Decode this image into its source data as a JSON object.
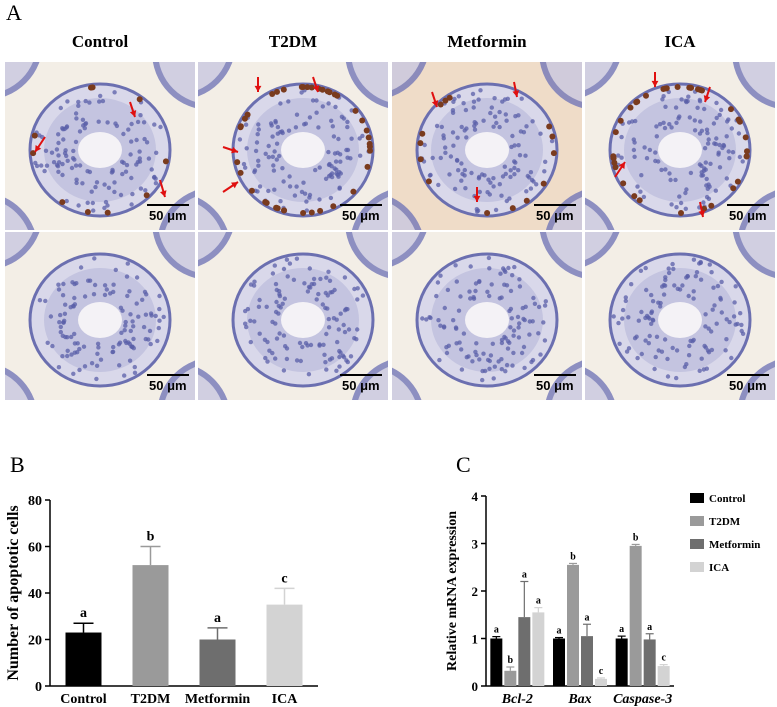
{
  "panel_a": {
    "letter": "A",
    "columns": [
      "Control",
      "T2DM",
      "Metformin",
      "ICA"
    ],
    "scale_label": "50 μm"
  },
  "panel_b": {
    "letter": "B"
  },
  "panel_c": {
    "letter": "C"
  },
  "colors": {
    "control": "#000000",
    "t2dm": "#9a9a9a",
    "metformin": "#6e6e6e",
    "ica": "#d3d3d3",
    "arrow": "#e01010",
    "tissue_bg": "#f3eee6",
    "nucleus_blue": "#5a5fa8",
    "nucleus_brown": "#7a3b1e"
  },
  "chart_data": [
    {
      "type": "bar",
      "categories": [
        "Control",
        "T2DM",
        "Metformin",
        "ICA"
      ],
      "values": [
        23,
        52,
        20,
        35
      ],
      "errors": [
        4,
        8,
        5,
        7
      ],
      "letters": [
        "a",
        "b",
        "a",
        "c"
      ],
      "ylabel": "Number of apoptotic cells",
      "xlabel": "",
      "ylim": [
        0,
        80
      ],
      "yticks": [
        0,
        20,
        40,
        60,
        80
      ]
    },
    {
      "type": "bar",
      "categories": [
        "Bcl-2",
        "Bax",
        "Caspase-3"
      ],
      "series": [
        {
          "name": "Control",
          "values": [
            1.0,
            1.0,
            1.0
          ],
          "errors": [
            0.04,
            0.02,
            0.05
          ],
          "letters": [
            "a",
            "a",
            "a"
          ]
        },
        {
          "name": "T2DM",
          "values": [
            0.32,
            2.55,
            2.95
          ],
          "errors": [
            0.08,
            0.03,
            0.03
          ],
          "letters": [
            "b",
            "b",
            "b"
          ]
        },
        {
          "name": "Metformin",
          "values": [
            1.45,
            1.05,
            0.98
          ],
          "errors": [
            0.75,
            0.25,
            0.12
          ],
          "letters": [
            "a",
            "a",
            "a"
          ]
        },
        {
          "name": "ICA",
          "values": [
            1.55,
            0.15,
            0.42
          ],
          "errors": [
            0.1,
            0.02,
            0.03
          ],
          "letters": [
            "a",
            "c",
            "c"
          ]
        }
      ],
      "ylabel": "Relative mRNA expression",
      "xlabel": "",
      "ylim": [
        0,
        4
      ],
      "yticks": [
        0,
        1,
        2,
        3,
        4
      ],
      "legend": "right"
    }
  ]
}
